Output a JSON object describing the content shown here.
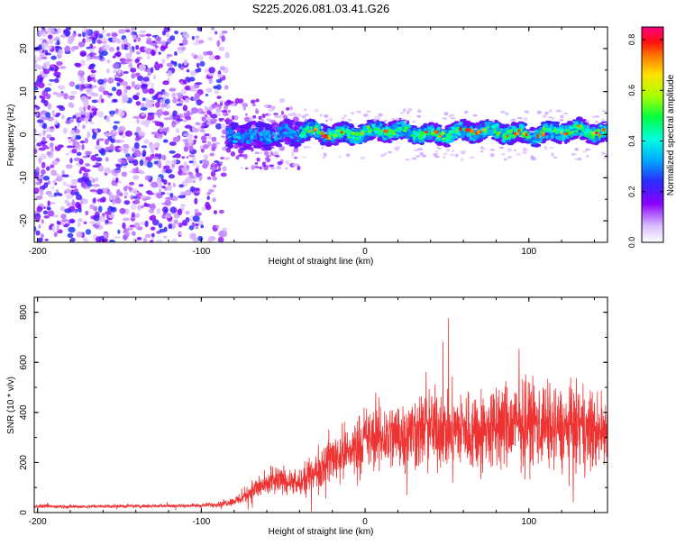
{
  "figure": {
    "title": "S225.2026.081.03.41.G26"
  },
  "chart_data": [
    {
      "type": "heatmap",
      "xlabel": "Height of straight line (km)",
      "ylabel": "Frequency (Hz)",
      "xlim": [
        -202,
        148
      ],
      "ylim": [
        -25,
        25
      ],
      "x_ticks": [
        -200,
        -100,
        0,
        100
      ],
      "y_ticks": [
        -20,
        -10,
        0,
        10,
        20
      ],
      "grid": false,
      "colorbar": {
        "label": "Normalized spectral amplitude",
        "range": [
          0.0,
          0.85
        ],
        "ticks": [
          "0.0",
          "0.2",
          "0.4",
          "0.6",
          "0.8"
        ],
        "tick_values": [
          0.0,
          0.2,
          0.4,
          0.6,
          0.8
        ],
        "colormap": "rainbow (white-violet-blue-cyan-green-yellow-orange-red-magenta)"
      },
      "regions": [
        {
          "x_range": [
            -202,
            -84
          ],
          "description_level": "broadband noise",
          "amplitude": 0.07,
          "freq_span": [
            -25,
            25
          ]
        },
        {
          "x_range": [
            -84,
            -40
          ],
          "description_level": "weak tone",
          "amplitude": 0.3,
          "freq_center": 0,
          "freq_halfwidth": 3
        },
        {
          "x_range": [
            -40,
            148
          ],
          "description_level": "strong tone",
          "amplitude": 0.6,
          "freq_center": 0.5,
          "freq_halfwidth": 2.2
        }
      ]
    },
    {
      "type": "line",
      "xlabel": "Height of straight line (km)",
      "ylabel": "SNR (10 * v/v)",
      "xlim": [
        -202,
        148
      ],
      "ylim": [
        0,
        860
      ],
      "x_ticks": [
        -200,
        -100,
        0,
        100
      ],
      "y_ticks": [
        0,
        200,
        400,
        600,
        800
      ],
      "grid": false,
      "series": [
        {
          "color": "#ee3333",
          "x": [
            -200,
            -180,
            -160,
            -140,
            -120,
            -100,
            -90,
            -80,
            -75,
            -70,
            -65,
            -60,
            -55,
            -50,
            -45,
            -40,
            -35,
            -30,
            -25,
            -20,
            -15,
            -10,
            -5,
            0,
            10,
            20,
            30,
            40,
            50,
            60,
            70,
            80,
            90,
            100,
            110,
            120,
            130,
            140,
            148
          ],
          "mean": [
            25,
            24,
            25,
            26,
            27,
            28,
            33,
            45,
            60,
            85,
            100,
            110,
            120,
            130,
            120,
            110,
            140,
            160,
            200,
            220,
            230,
            240,
            270,
            290,
            300,
            310,
            320,
            340,
            330,
            330,
            320,
            340,
            350,
            360,
            350,
            330,
            340,
            320,
            330
          ],
          "spread": [
            10,
            10,
            10,
            10,
            10,
            12,
            15,
            25,
            40,
            60,
            70,
            70,
            80,
            80,
            70,
            80,
            100,
            120,
            140,
            150,
            160,
            160,
            170,
            180,
            200,
            210,
            220,
            230,
            230,
            240,
            240,
            250,
            260,
            260,
            250,
            240,
            240,
            230,
            240
          ]
        }
      ]
    }
  ]
}
